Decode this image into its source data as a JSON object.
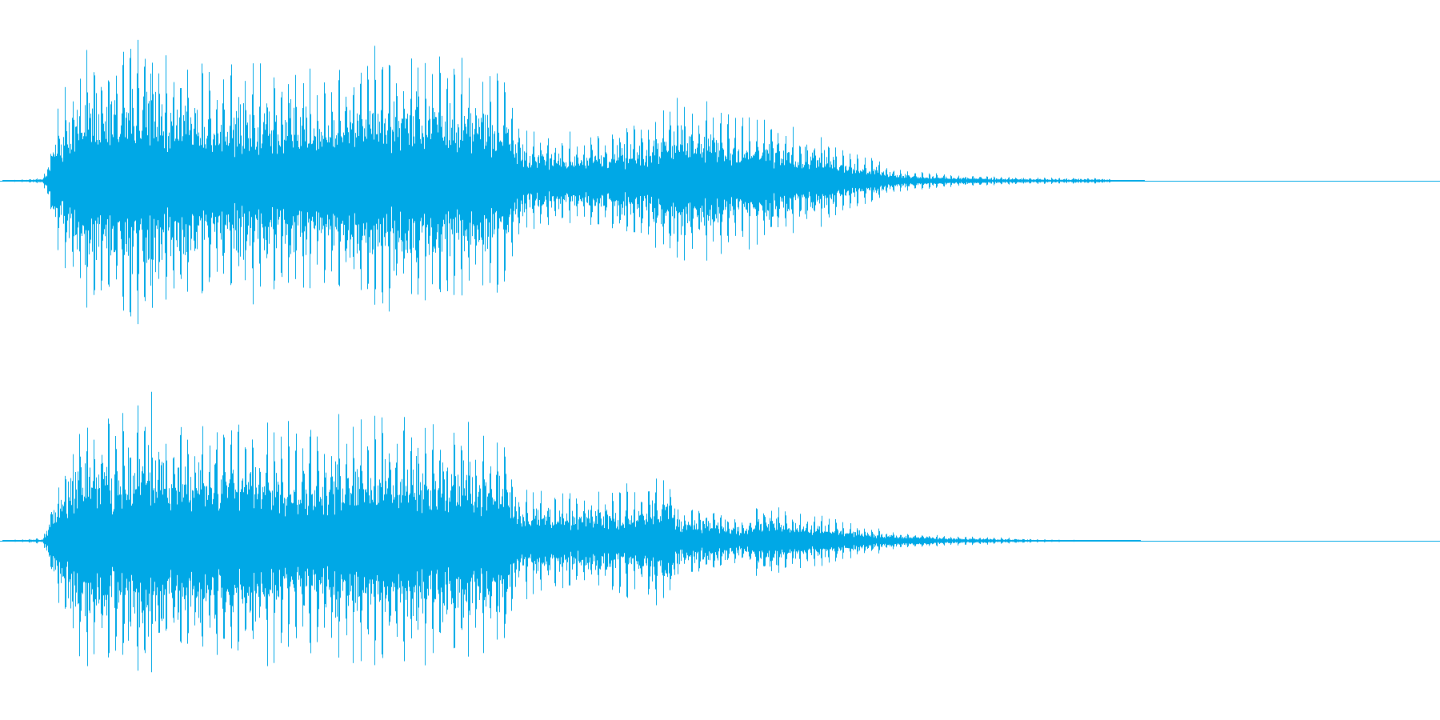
{
  "waveform": {
    "channel_count": 2,
    "colors": {
      "waveform": "#00a8e6",
      "background": "#ffffff",
      "baseline": "#00a8e6"
    },
    "channels": [
      {
        "name": "",
        "envelope": [
          [
            0.0,
            0.0
          ],
          [
            0.03,
            0.02
          ],
          [
            0.036,
            0.35
          ],
          [
            0.045,
            0.65
          ],
          [
            0.06,
            0.9
          ],
          [
            0.08,
            0.85
          ],
          [
            0.1,
            1.0
          ],
          [
            0.14,
            0.8
          ],
          [
            0.18,
            0.8
          ],
          [
            0.22,
            0.75
          ],
          [
            0.26,
            0.9
          ],
          [
            0.3,
            0.85
          ],
          [
            0.33,
            0.8
          ],
          [
            0.35,
            0.75
          ],
          [
            0.36,
            0.38
          ],
          [
            0.4,
            0.3
          ],
          [
            0.45,
            0.4
          ],
          [
            0.466,
            0.62
          ],
          [
            0.5,
            0.48
          ],
          [
            0.55,
            0.38
          ],
          [
            0.6,
            0.18
          ],
          [
            0.62,
            0.08
          ],
          [
            0.66,
            0.04
          ],
          [
            0.72,
            0.02
          ],
          [
            0.76,
            0.02
          ],
          [
            0.78,
            0.004
          ],
          [
            0.8,
            0.0
          ],
          [
            1.0,
            0.0
          ]
        ]
      },
      {
        "name": "",
        "envelope": [
          [
            0.0,
            0.0
          ],
          [
            0.03,
            0.02
          ],
          [
            0.036,
            0.35
          ],
          [
            0.045,
            0.65
          ],
          [
            0.06,
            0.9
          ],
          [
            0.08,
            0.85
          ],
          [
            0.1,
            1.0
          ],
          [
            0.14,
            0.8
          ],
          [
            0.18,
            0.8
          ],
          [
            0.22,
            0.75
          ],
          [
            0.26,
            0.9
          ],
          [
            0.3,
            0.85
          ],
          [
            0.33,
            0.8
          ],
          [
            0.35,
            0.75
          ],
          [
            0.36,
            0.38
          ],
          [
            0.4,
            0.3
          ],
          [
            0.45,
            0.4
          ],
          [
            0.466,
            0.46
          ],
          [
            0.47,
            0.25
          ],
          [
            0.52,
            0.18
          ],
          [
            0.525,
            0.28
          ],
          [
            0.58,
            0.15
          ],
          [
            0.62,
            0.06
          ],
          [
            0.66,
            0.03
          ],
          [
            0.7,
            0.02
          ],
          [
            0.72,
            0.01
          ],
          [
            0.8,
            0.0
          ],
          [
            1.0,
            0.0
          ]
        ]
      }
    ]
  }
}
